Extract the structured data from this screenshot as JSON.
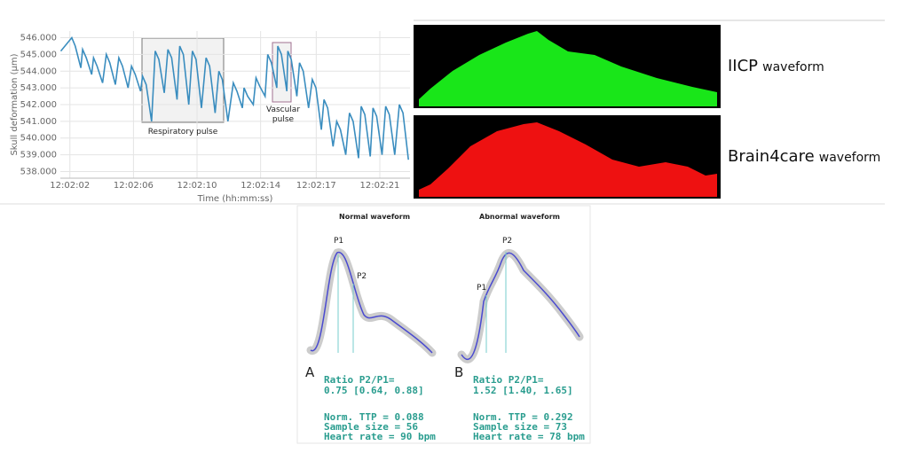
{
  "chart_data": {
    "type": "line",
    "xlabel": "Time (hh:mm:ss)",
    "ylabel": "Skull deformation (µm)",
    "xlim": [
      1.4,
      23.4
    ],
    "ylim": [
      537.6,
      546.4
    ],
    "xticks": [
      {
        "value": 2,
        "label": "12:02:02"
      },
      {
        "value": 6,
        "label": "12:02:06"
      },
      {
        "value": 10,
        "label": "12:02:10"
      },
      {
        "value": 14,
        "label": "12:02:14"
      },
      {
        "value": 17.5,
        "label": "12:02:17"
      },
      {
        "value": 21.5,
        "label": "12:02:21"
      }
    ],
    "yticks": [
      {
        "value": 538,
        "label": "538.000"
      },
      {
        "value": 539,
        "label": "539.000"
      },
      {
        "value": 540,
        "label": "540.000"
      },
      {
        "value": 541,
        "label": "541.000"
      },
      {
        "value": 542,
        "label": "542.000"
      },
      {
        "value": 543,
        "label": "543.000"
      },
      {
        "value": 544,
        "label": "544.000"
      },
      {
        "value": 545,
        "label": "545.000"
      },
      {
        "value": 546,
        "label": "546.000"
      }
    ],
    "grid": true,
    "annotations": [
      "Respiratory pulse",
      "Vascular pulse"
    ],
    "x": [
      1.43,
      2.12,
      2.34,
      2.69,
      2.8,
      3.03,
      3.37,
      3.49,
      3.71,
      4.06,
      4.29,
      4.51,
      4.86,
      5.08,
      5.31,
      5.66,
      5.88,
      6.11,
      6.45,
      6.57,
      6.8,
      7.14,
      7.37,
      7.6,
      7.94,
      8.17,
      8.4,
      8.74,
      8.91,
      9.14,
      9.48,
      9.71,
      9.94,
      10.28,
      10.57,
      10.79,
      11.14,
      11.37,
      11.59,
      11.94,
      12.28,
      12.51,
      12.85,
      12.96,
      13.19,
      13.54,
      13.71,
      13.94,
      14.28,
      14.45,
      14.68,
      15.02,
      15.08,
      15.31,
      15.65,
      15.71,
      15.93,
      16.28,
      16.45,
      16.68,
      17.02,
      17.25,
      17.48,
      17.82,
      17.99,
      18.22,
      18.56,
      18.79,
      19.02,
      19.36,
      19.59,
      19.82,
      20.16,
      20.33,
      20.56,
      20.9,
      21.07,
      21.3,
      21.64,
      21.87,
      22.1,
      22.44,
      22.73,
      22.96,
      23.3
    ],
    "series": [
      {
        "name": "Skull deformation",
        "color": "#3a8dbf",
        "values": [
          545.2,
          546.0,
          545.5,
          544.2,
          545.3,
          544.8,
          543.8,
          544.8,
          544.3,
          543.3,
          545.0,
          544.5,
          543.2,
          544.8,
          544.3,
          543.0,
          544.3,
          543.8,
          542.8,
          543.7,
          543.2,
          541.0,
          545.2,
          544.7,
          542.7,
          545.3,
          544.8,
          542.3,
          545.5,
          545.0,
          542.0,
          545.2,
          544.7,
          541.8,
          544.8,
          544.3,
          541.5,
          544.0,
          543.5,
          541.0,
          543.3,
          542.8,
          541.8,
          543.0,
          542.5,
          542.0,
          543.6,
          543.1,
          542.5,
          545.0,
          544.5,
          543.0,
          545.5,
          545.0,
          542.8,
          545.2,
          544.7,
          542.5,
          544.5,
          544.0,
          541.8,
          543.5,
          543.0,
          540.5,
          542.3,
          541.8,
          539.5,
          541.0,
          540.5,
          539.0,
          541.5,
          541.0,
          538.8,
          541.9,
          541.4,
          538.9,
          541.8,
          541.3,
          539.0,
          541.9,
          541.4,
          539.0,
          542.0,
          541.5,
          538.7
        ]
      }
    ]
  },
  "waveforms": [
    {
      "name": "IICP",
      "suffix": "waveform"
    },
    {
      "name": "Brain4care",
      "suffix": "waveform"
    }
  ],
  "panels": [
    {
      "title": "Normal waveform",
      "letter": "A",
      "p1": "P1",
      "p2": "P2",
      "ratio_label": "Ratio P2/P1=",
      "ratio": "0.75 [0.64, 0.88]",
      "stats": [
        "Norm. TTP = 0.088",
        "Sample size = 56",
        "Heart rate = 90 bpm"
      ]
    },
    {
      "title": "Abnormal waveform",
      "letter": "B",
      "p1": "P1",
      "p2": "P2",
      "ratio_label": "Ratio P2/P1=",
      "ratio": "1.52 [1.40, 1.65]",
      "stats": [
        "Norm. TTP = 0.292",
        "Sample size = 73",
        "Heart rate = 78 bpm"
      ]
    }
  ]
}
